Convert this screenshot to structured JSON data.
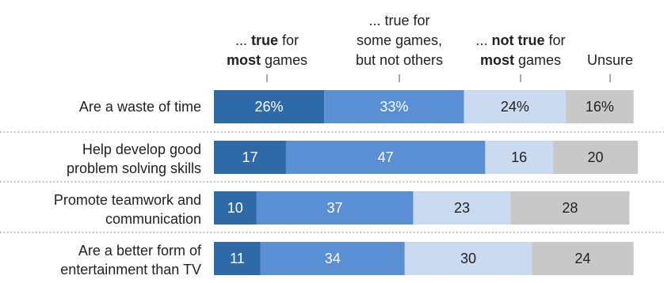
{
  "chart_data": {
    "type": "bar",
    "orientation": "horizontal",
    "stacked": true,
    "legend_placement": "top",
    "grid": false,
    "xlim": [
      0,
      100
    ],
    "header_labels": [
      {
        "lines": [
          [
            {
              "t": "... ",
              "b": false
            },
            {
              "t": "true",
              "b": true
            },
            {
              "t": " for",
              "b": false
            }
          ],
          [
            {
              "t": "most",
              "b": true
            },
            {
              "t": " games",
              "b": false
            }
          ]
        ]
      },
      {
        "lines": [
          [
            {
              "t": "... true for",
              "b": false
            }
          ],
          [
            {
              "t": "some games,",
              "b": false
            }
          ],
          [
            {
              "t": "but not others",
              "b": false
            }
          ]
        ]
      },
      {
        "lines": [
          [
            {
              "t": "... ",
              "b": false
            },
            {
              "t": "not true",
              "b": true
            },
            {
              "t": " for",
              "b": false
            }
          ],
          [
            {
              "t": "most",
              "b": true
            },
            {
              "t": " games",
              "b": false
            }
          ]
        ]
      },
      {
        "lines": [
          [
            {
              "t": "Unsure",
              "b": false
            }
          ]
        ]
      }
    ],
    "series": [
      {
        "key": "true_most",
        "color": "#2e6aa8",
        "text_color": "#ffffff"
      },
      {
        "key": "true_some",
        "color": "#5b8fd4",
        "text_color": "#ffffff"
      },
      {
        "key": "not_true_most",
        "color": "#c9daf1",
        "text_color": "#222222"
      },
      {
        "key": "unsure",
        "color": "#c8c8c8",
        "text_color": "#222222"
      }
    ],
    "categories": [
      {
        "lines": [
          "Are a waste of time"
        ],
        "values": [
          26,
          33,
          24,
          16
        ],
        "labels": [
          "26%",
          "33%",
          "24%",
          "16%"
        ]
      },
      {
        "lines": [
          "Help develop good",
          "problem solving skills"
        ],
        "values": [
          17,
          47,
          16,
          20
        ],
        "labels": [
          "17",
          "47",
          "16",
          "20"
        ]
      },
      {
        "lines": [
          "Promote teamwork and",
          "communication"
        ],
        "values": [
          10,
          37,
          23,
          28
        ],
        "labels": [
          "10",
          "37",
          "23",
          "28"
        ]
      },
      {
        "lines": [
          "Are a better form of",
          "entertainment than TV"
        ],
        "values": [
          11,
          34,
          30,
          24
        ],
        "labels": [
          "11",
          "34",
          "30",
          "24"
        ]
      }
    ]
  }
}
